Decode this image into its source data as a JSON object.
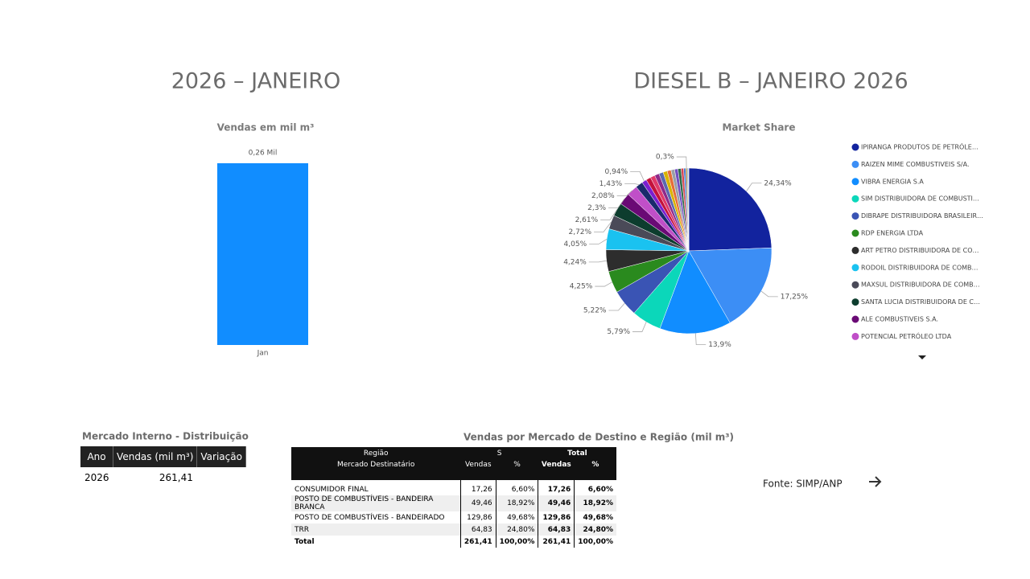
{
  "headings": [
    "2026 – JANEIRO",
    "DIESEL B – JANEIRO 2026"
  ],
  "chart_data": [
    {
      "type": "bar",
      "title": "Vendas  em mil m³",
      "categories": [
        "Jan"
      ],
      "values": [
        0.26
      ],
      "value_labels": [
        "0,26 Mil"
      ],
      "color": "#118dff"
    },
    {
      "type": "pie",
      "title": "Market Share",
      "categories": [
        "IPIRANGA PRODUTOS DE PETRÓLE…",
        "RAIZEN MIME COMBUSTIVEIS S/A.",
        "VIBRA ENERGIA S.A",
        "SIM DISTRIBUIDORA DE COMBUSTI…",
        "DIBRAPE DISTRIBUIDORA BRASILEIR…",
        "RDP ENERGIA LTDA",
        "ART PETRO DISTRIBUIDORA DE CO…",
        "RODOIL DISTRIBUIDORA DE COMB…",
        "MAXSUL DISTRIBUIDORA DE COMB…",
        "SANTA LUCIA DISTRIBUIDORA DE C…",
        "ALE COMBUSTIVEIS S.A.",
        "POTENCIAL PETRÓLEO LTDA",
        null,
        null,
        null,
        null,
        null,
        null,
        null,
        null,
        null,
        null,
        null,
        null,
        null,
        null,
        null,
        null
      ],
      "values": [
        24.34,
        17.25,
        13.9,
        5.79,
        5.22,
        4.25,
        4.24,
        4.05,
        2.72,
        2.61,
        2.3,
        2.08,
        1.43,
        0.94,
        0.92,
        0.9,
        0.88,
        0.85,
        0.8,
        0.75,
        0.7,
        0.65,
        0.6,
        0.5,
        0.4,
        0.3,
        0.2,
        0.1
      ],
      "value_labels": [
        "24,34%",
        "17,25%",
        "13,9%",
        "5,79%",
        "5,22%",
        "4,25%",
        "4,24%",
        "4,05%",
        "2,72%",
        "2,61%",
        "2,3%",
        "2,08%",
        "1,43%",
        "0,94%",
        null,
        null,
        null,
        null,
        null,
        null,
        null,
        null,
        null,
        null,
        null,
        "0,3%",
        null,
        null
      ],
      "colors": [
        "#12239e",
        "#3c8ef5",
        "#118dff",
        "#0bd7ba",
        "#3a54b4",
        "#2a8a1e",
        "#2d2d2d",
        "#1ac2f0",
        "#4a4a58",
        "#0d3d2e",
        "#6a0a75",
        "#c04fc8",
        "#1a2a6c",
        "#7b1fd0",
        "#c4123c",
        "#e03a6a",
        "#8e2a8a",
        "#5a6ab0",
        "#d9b300",
        "#e66c37",
        "#9aa0a6",
        "#744ec2",
        "#2e6b4a",
        "#d64550",
        "#4b7bd1",
        "#b08a3a",
        "#6fa8dc",
        "#999999"
      ]
    }
  ],
  "distribution_table": {
    "title": "Mercado Interno - Distribuição",
    "columns": [
      "Ano",
      "Vendas (mil m³)",
      "Variação"
    ],
    "rows": [
      [
        "2026",
        "261,41"
      ]
    ]
  },
  "region_table": {
    "title": "Vendas por Mercado de Destino e Região (mil m³)",
    "group_header": [
      "Região",
      "S",
      "Total"
    ],
    "row_header": "Mercado Destinatário",
    "columns": [
      "Vendas",
      "%",
      "Vendas",
      "%"
    ],
    "rows": [
      [
        "CONSUMIDOR FINAL",
        "17,26",
        "6,60%",
        "17,26",
        "6,60%"
      ],
      [
        "POSTO DE COMBUSTÍVEIS - BANDEIRA BRANCA",
        "49,46",
        "18,92%",
        "49,46",
        "18,92%"
      ],
      [
        "POSTO DE COMBUSTÍVEIS - BANDEIRADO",
        "129,86",
        "49,68%",
        "129,86",
        "49,68%"
      ],
      [
        "TRR",
        "64,83",
        "24,80%",
        "64,83",
        "24,80%"
      ]
    ],
    "total": [
      "Total",
      "261,41",
      "100,00%",
      "261,41",
      "100,00%"
    ]
  },
  "source": "Fonte: SIMP/ANP"
}
